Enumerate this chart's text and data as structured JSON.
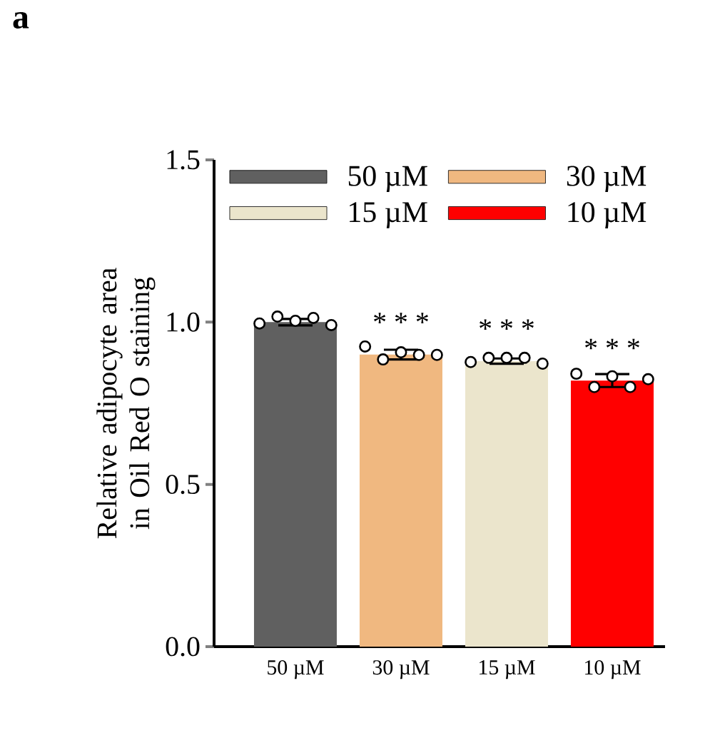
{
  "chart_data": {
    "type": "bar",
    "categories": [
      "50 µM",
      "30 µM",
      "15 µM",
      "10 µM"
    ],
    "ylabel": "Relative adipocyte area in Oil Red O staining",
    "ylim": [
      0,
      1.5
    ],
    "yticks": [
      {
        "value": 0,
        "label": "0.0"
      },
      {
        "value": 0.5,
        "label": "0.5"
      },
      {
        "value": 1.0,
        "label": "1.0"
      },
      {
        "value": 1.5,
        "label": "1.5"
      }
    ],
    "series": [
      {
        "name": "50 µM",
        "color": "#606060",
        "values": [
          1.0,
          null,
          null,
          null
        ],
        "errors": [
          0.01,
          null,
          null,
          null
        ]
      },
      {
        "name": "30 µM",
        "color": "#f0b880",
        "values": [
          null,
          0.9,
          null,
          null
        ],
        "errors": [
          null,
          0.015,
          null,
          null
        ]
      },
      {
        "name": "15 µM",
        "color": "#ebe5cc",
        "values": [
          null,
          null,
          0.88,
          null
        ],
        "errors": [
          null,
          null,
          0.008,
          null
        ]
      },
      {
        "name": "10 µM",
        "color": "#ff0000",
        "values": [
          null,
          null,
          null,
          0.82
        ],
        "errors": [
          null,
          null,
          null,
          0.02
        ]
      },
      {
        "type": "scatter",
        "color": "#000000",
        "x": [
          "50 µM",
          "50 µM",
          "50 µM",
          "50 µM",
          "50 µM",
          "30 µM",
          "30 µM",
          "30 µM",
          "30 µM",
          "30 µM",
          "15 µM",
          "15 µM",
          "15 µM",
          "15 µM",
          "15 µM",
          "10 µM",
          "10 µM",
          "10 µM",
          "10 µM",
          "10 µM"
        ],
        "values": [
          0.996,
          1.017,
          1.004,
          1.013,
          0.991,
          0.925,
          0.885,
          0.907,
          0.899,
          0.899,
          0.877,
          0.89,
          0.89,
          0.89,
          0.872,
          0.841,
          0.8,
          0.833,
          0.8,
          0.824
        ]
      }
    ],
    "marker": "circle",
    "legend": "top",
    "grid": false,
    "annotations": [
      "a",
      {
        "text": "* * *",
        "x": "30 µM",
        "y": 0.9
      },
      {
        "text": "* * *",
        "x": "15 µM",
        "y": 0.88
      },
      {
        "text": "* * *",
        "x": "10 µM",
        "y": 0.82
      }
    ]
  }
}
